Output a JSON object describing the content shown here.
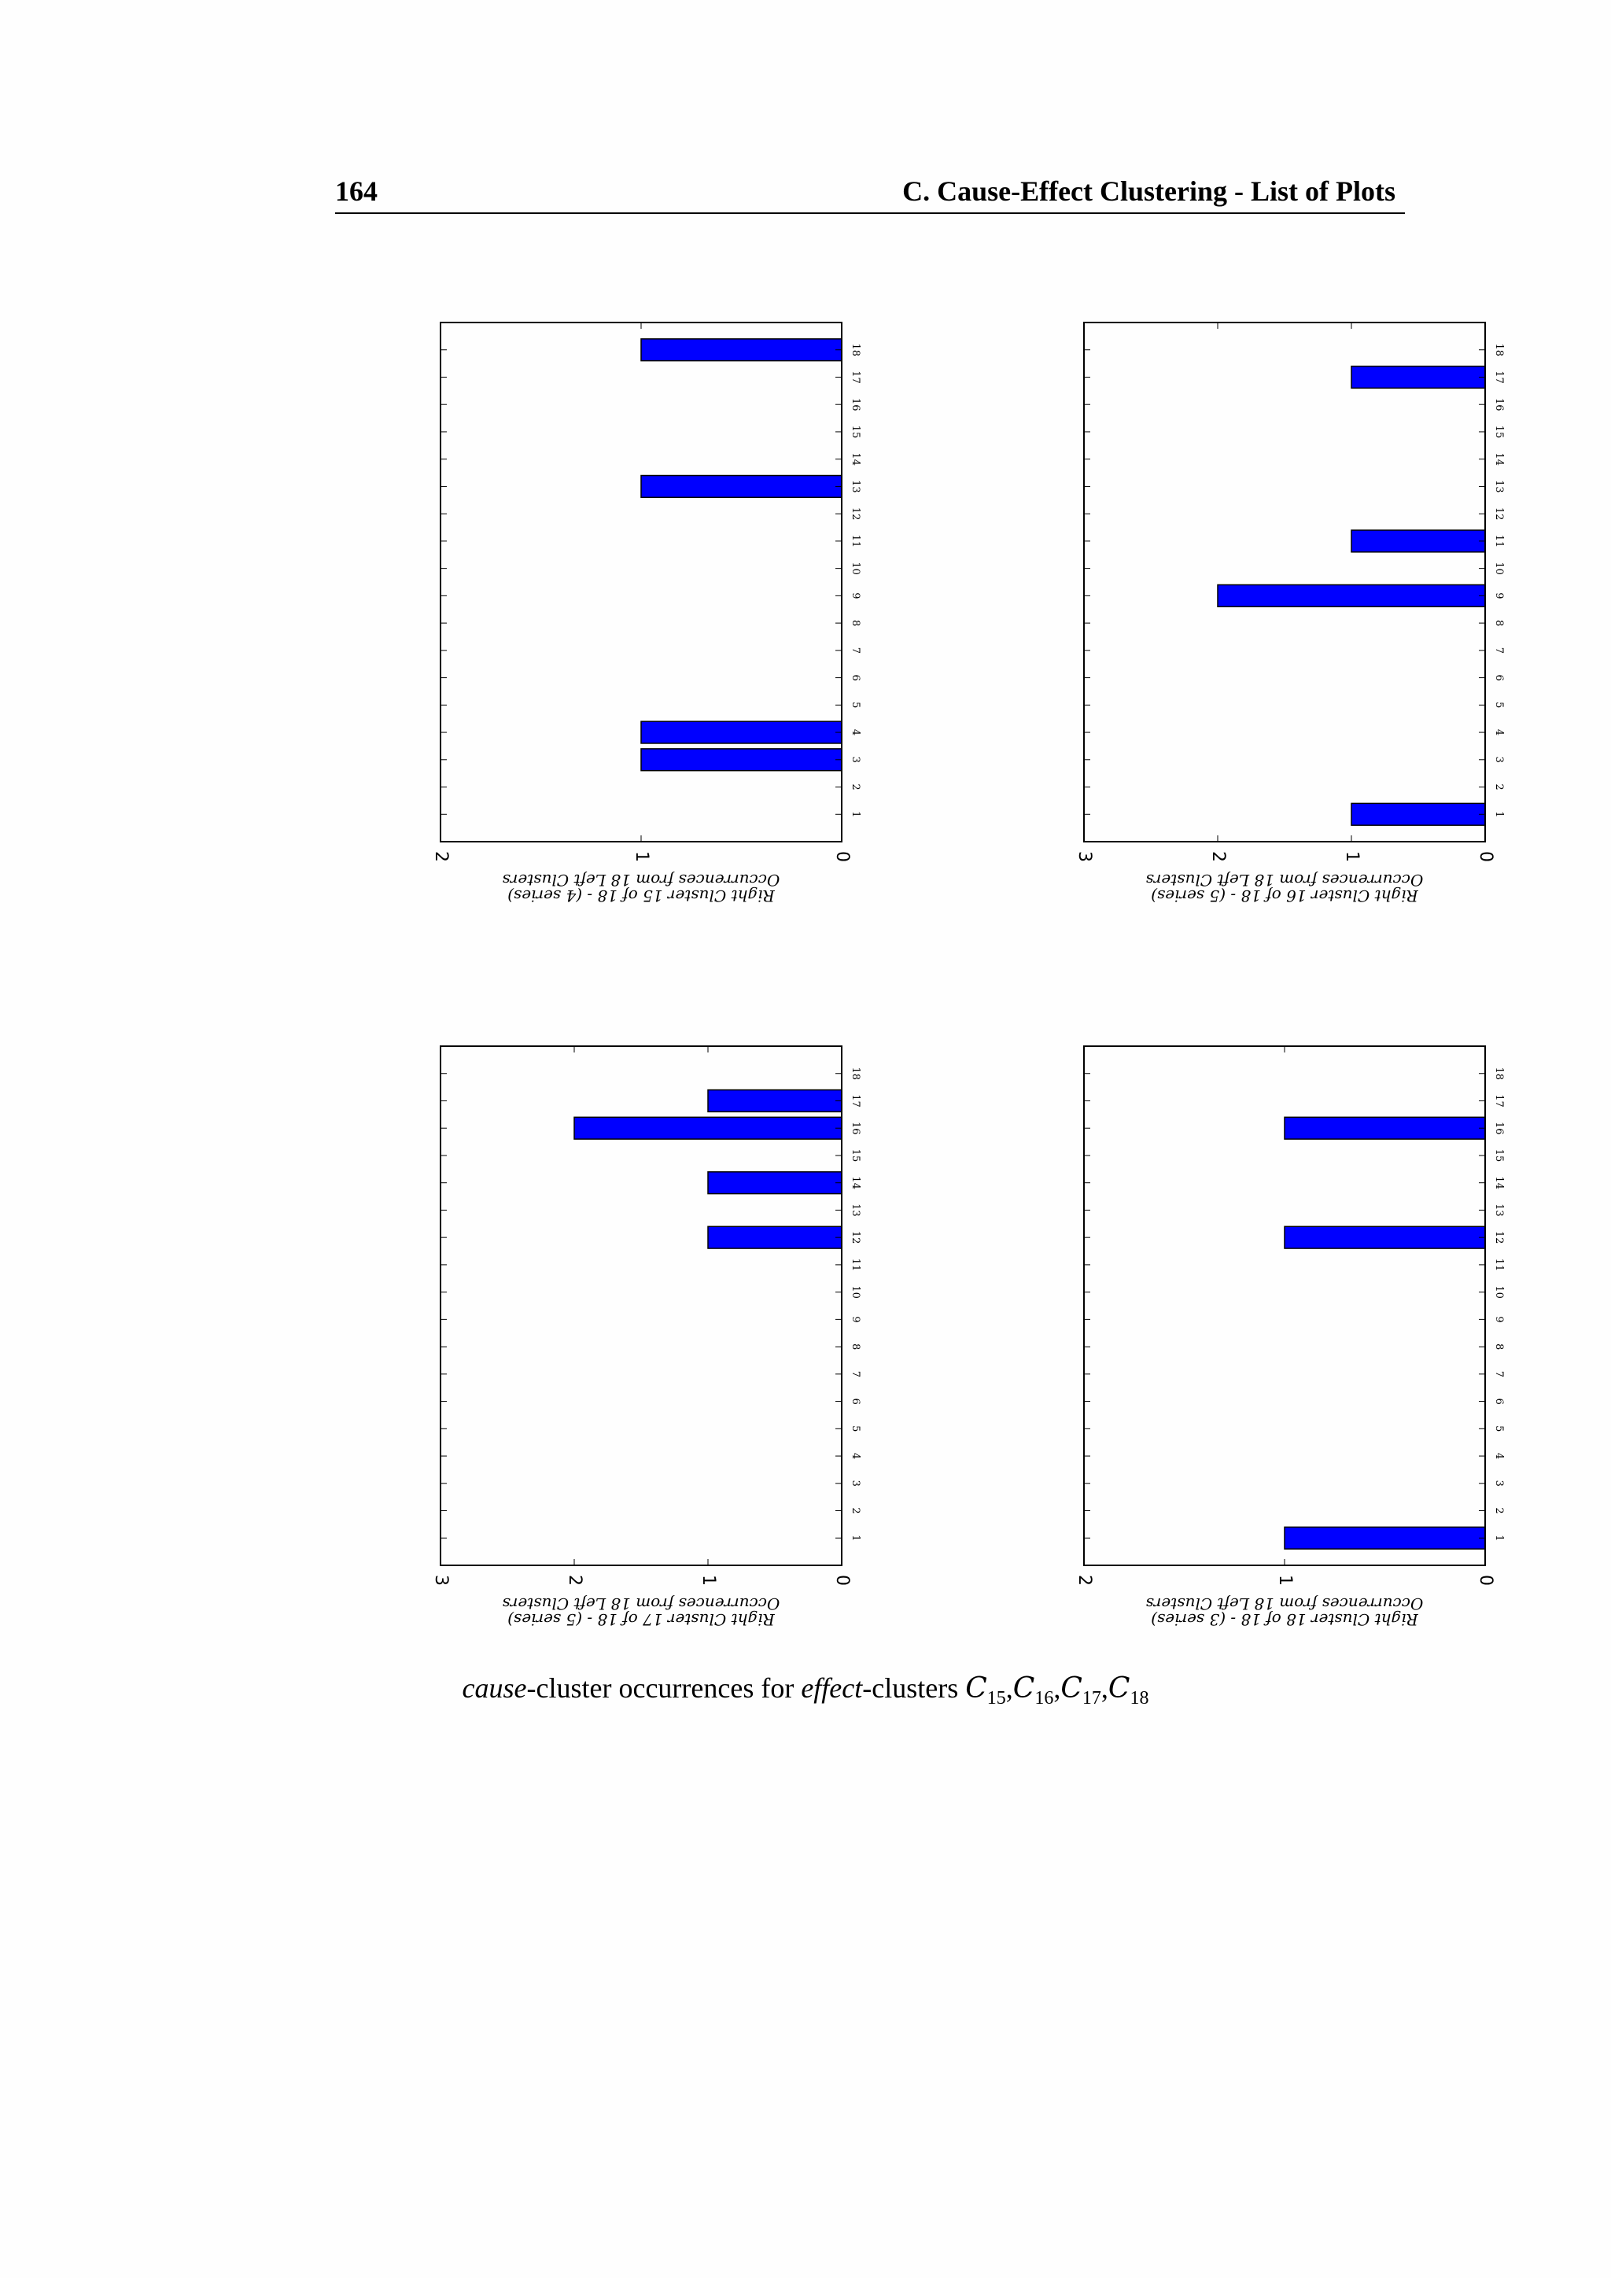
{
  "header": {
    "page_number": "164",
    "running_title": "C. Cause-Effect Clustering - List of Plots"
  },
  "caption": {
    "italic_cause": "cause",
    "text_1": "-cluster occurrences for ",
    "italic_effect": "effect",
    "text_2": "-clusters ",
    "cluster_letter": "C",
    "subscripts": [
      "15",
      "16",
      "17",
      "18"
    ],
    "separator": ","
  },
  "style": {
    "bar_fill": "#0000ff",
    "bar_stroke": "#000000"
  },
  "chart_data": [
    {
      "type": "bar",
      "orientation": "rotated-page",
      "categories": [
        "1",
        "2",
        "3",
        "4",
        "5",
        "6",
        "7",
        "8",
        "9",
        "10",
        "11",
        "12",
        "13",
        "14",
        "15",
        "16",
        "17",
        "18"
      ],
      "values": [
        0,
        0,
        1,
        1,
        0,
        0,
        0,
        0,
        0,
        0,
        0,
        0,
        1,
        0,
        0,
        0,
        0,
        1
      ],
      "ylim": [
        0,
        2
      ],
      "yticks": [
        "0",
        "1",
        "2"
      ],
      "ylabel_line1": "Right Cluster 15 of 18 - (4 series)",
      "ylabel_line2": "Occurrences from 18 Left Clusters"
    },
    {
      "type": "bar",
      "orientation": "rotated-page",
      "categories": [
        "1",
        "2",
        "3",
        "4",
        "5",
        "6",
        "7",
        "8",
        "9",
        "10",
        "11",
        "12",
        "13",
        "14",
        "15",
        "16",
        "17",
        "18"
      ],
      "values": [
        1,
        0,
        0,
        0,
        0,
        0,
        0,
        0,
        2,
        0,
        1,
        0,
        0,
        0,
        0,
        0,
        1,
        0
      ],
      "ylim": [
        0,
        3
      ],
      "yticks": [
        "0",
        "1",
        "2",
        "3"
      ],
      "ylabel_line1": "Right Cluster 16 of 18 - (5 series)",
      "ylabel_line2": "Occurrences from 18 Left Clusters"
    },
    {
      "type": "bar",
      "orientation": "rotated-page",
      "categories": [
        "1",
        "2",
        "3",
        "4",
        "5",
        "6",
        "7",
        "8",
        "9",
        "10",
        "11",
        "12",
        "13",
        "14",
        "15",
        "16",
        "17",
        "18"
      ],
      "values": [
        0,
        0,
        0,
        0,
        0,
        0,
        0,
        0,
        0,
        0,
        0,
        1,
        0,
        1,
        0,
        2,
        1,
        0
      ],
      "ylim": [
        0,
        3
      ],
      "yticks": [
        "0",
        "1",
        "2",
        "3"
      ],
      "ylabel_line1": "Right Cluster 17 of 18 - (5 series)",
      "ylabel_line2": "Occurrences from 18 Left Clusters"
    },
    {
      "type": "bar",
      "orientation": "rotated-page",
      "categories": [
        "1",
        "2",
        "3",
        "4",
        "5",
        "6",
        "7",
        "8",
        "9",
        "10",
        "11",
        "12",
        "13",
        "14",
        "15",
        "16",
        "17",
        "18"
      ],
      "values": [
        1,
        0,
        0,
        0,
        0,
        0,
        0,
        0,
        0,
        0,
        0,
        1,
        0,
        0,
        0,
        1,
        0,
        0
      ],
      "ylim": [
        0,
        2
      ],
      "yticks": [
        "0",
        "1",
        "2"
      ],
      "ylabel_line1": "Right Cluster 18 of 18 - (3 series)",
      "ylabel_line2": "Occurrences from 18 Left Clusters"
    }
  ]
}
